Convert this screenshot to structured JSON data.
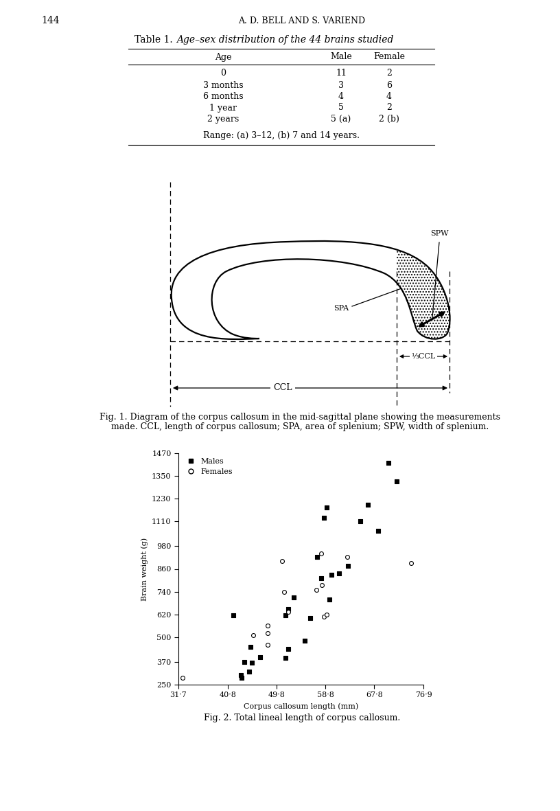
{
  "page": {
    "number": "144",
    "running_head": "A. D. BELL AND S. VARIEND"
  },
  "table": {
    "label": "Table 1.",
    "caption": "Age–sex distribution of the 44 brains studied",
    "columns": [
      "Age",
      "Male",
      "Female"
    ],
    "rows": [
      [
        "0",
        "11",
        "2"
      ],
      [
        "3 months",
        "3",
        "6"
      ],
      [
        "6 months",
        "4",
        "4"
      ],
      [
        "1 year",
        "5",
        "2"
      ],
      [
        "2 years",
        "5 (a)",
        "2 (b)"
      ]
    ],
    "note": "Range: (a) 3–12, (b) 7 and 14 years."
  },
  "figure1": {
    "labels": {
      "spw": "SPW",
      "spa": "SPA",
      "ccl": "CCL",
      "third_ccl": "⅓CCL"
    },
    "caption_lines": [
      "Fig. 1. Diagram of the corpus callosum in the mid-sagittal plane showing the measurements",
      "made. CCL, length of corpus callosum; SPA, area of splenium; SPW, width of splenium."
    ]
  },
  "chart_data": {
    "type": "scatter",
    "caption": "Fig. 2. Total lineal length of corpus callosum.",
    "xlabel": "Corpus callosum length (mm)",
    "ylabel": "Brain weight (g)",
    "xlim": [
      31.7,
      76.9
    ],
    "ylim": [
      250,
      1470
    ],
    "xticks": [
      {
        "value": 31.7,
        "label": "31·7"
      },
      {
        "value": 40.8,
        "label": "40·8"
      },
      {
        "value": 49.8,
        "label": "49·8"
      },
      {
        "value": 58.8,
        "label": "58·8"
      },
      {
        "value": 67.8,
        "label": "67·8"
      },
      {
        "value": 76.9,
        "label": "76·9"
      }
    ],
    "yticks": [
      250,
      370,
      500,
      620,
      740,
      860,
      980,
      1110,
      1230,
      1350,
      1470
    ],
    "legend": "upper left",
    "series": [
      {
        "name": "Males",
        "color": "#000000",
        "marker": "square",
        "x": [
          41.8,
          43.2,
          43.4,
          43.8,
          44.8,
          45.0,
          45.2,
          46.8,
          51.4,
          51.9,
          51.4,
          51.9,
          53.0,
          55.0,
          56.0,
          57.3,
          58.0,
          58.6,
          59.1,
          59.5,
          59.9,
          61.3,
          63.0,
          65.2,
          66.6,
          68.5,
          70.5,
          72.0
        ],
        "values": [
          615,
          300,
          285,
          370,
          320,
          450,
          365,
          395,
          390,
          440,
          615,
          650,
          710,
          480,
          600,
          925,
          810,
          1130,
          1185,
          700,
          830,
          835,
          875,
          1110,
          1200,
          1060,
          1420,
          1320
        ]
      },
      {
        "name": "Females",
        "color": "#000000",
        "marker": "open_circle",
        "x": [
          32.5,
          45.5,
          48.2,
          48.2,
          48.2,
          50.8,
          51.2,
          52.0,
          57.1,
          58.0,
          58.2,
          58.6,
          59.0,
          62.8,
          74.6
        ],
        "values": [
          285,
          510,
          520,
          560,
          460,
          900,
          740,
          635,
          750,
          940,
          775,
          610,
          620,
          925,
          890
        ]
      }
    ]
  }
}
